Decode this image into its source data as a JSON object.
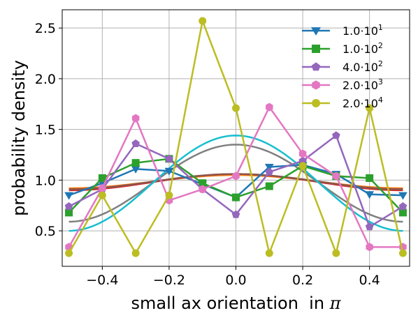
{
  "chart_data": {
    "type": "line",
    "title": "",
    "xlabel": "small ax orientation  in ",
    "xlabel_symbol": "π",
    "ylabel": "probability density",
    "xlim": [
      -0.52,
      0.52
    ],
    "ylim": [
      0.15,
      2.68
    ],
    "grid": true,
    "legend_position": "top-right",
    "x_ticks": [
      -0.4,
      -0.2,
      0.0,
      0.2,
      0.4
    ],
    "x_tick_labels": [
      "−0.4",
      "−0.2",
      "0.0",
      "0.2",
      "0.4"
    ],
    "y_ticks": [
      0.5,
      1.0,
      1.5,
      2.0,
      2.5
    ],
    "y_tick_labels": [
      "0.5",
      "1.0",
      "1.5",
      "2.0",
      "2.5"
    ],
    "x": [
      -0.5,
      -0.4,
      -0.3,
      -0.2,
      -0.1,
      0.0,
      0.1,
      0.2,
      0.3,
      0.4,
      0.5
    ],
    "series": [
      {
        "name_base": "1.0·10",
        "name_exp": "1",
        "color": "#1f77b4",
        "marker": "triangle-down",
        "values": [
          0.85,
          0.97,
          1.11,
          1.09,
          0.96,
          0.83,
          1.13,
          1.15,
          1.06,
          0.86,
          0.85
        ]
      },
      {
        "name_base": "1.0·10",
        "name_exp": "2",
        "color": "#2ca02c",
        "marker": "square",
        "values": [
          0.68,
          1.02,
          1.17,
          1.21,
          0.97,
          0.83,
          0.94,
          1.14,
          1.04,
          1.02,
          0.68
        ]
      },
      {
        "name_base": "4.0·10",
        "name_exp": "2",
        "color": "#9467bd",
        "marker": "pentagon",
        "values": [
          0.74,
          0.91,
          1.36,
          1.21,
          0.91,
          0.66,
          1.08,
          1.19,
          1.44,
          0.54,
          0.74
        ]
      },
      {
        "name_base": "2.0·10",
        "name_exp": "3",
        "color": "#e377c2",
        "marker": "hexagon",
        "values": [
          0.34,
          0.92,
          1.61,
          0.8,
          0.91,
          1.04,
          1.72,
          1.26,
          1.04,
          0.34,
          0.34
        ]
      },
      {
        "name_base": "2.0·10",
        "name_exp": "4",
        "color": "#bcbd22",
        "marker": "circle",
        "values": [
          0.28,
          0.85,
          0.28,
          0.85,
          2.57,
          1.71,
          0.28,
          1.14,
          0.28,
          1.71,
          0.28
        ]
      }
    ],
    "fit_curves": [
      {
        "color": "#ff7f0e",
        "amplitude": 0.13,
        "offset": 0.92
      },
      {
        "color": "#d62728",
        "amplitude": 0.16,
        "offset": 0.9
      },
      {
        "color": "#8c564b",
        "amplitude": 0.15,
        "offset": 0.91
      },
      {
        "color": "#7f7f7f",
        "amplitude": 0.76,
        "offset": 0.59
      },
      {
        "color": "#17becf",
        "amplitude": 0.94,
        "offset": 0.5
      }
    ]
  }
}
